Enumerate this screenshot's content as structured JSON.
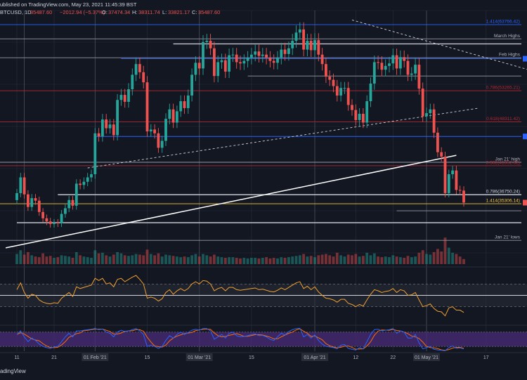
{
  "header": {
    "published": "ublished on TradingView.com, May 23, 2021 11:45:39 BST",
    "symbol": "BTCUSD, 1D",
    "last": "35487.60",
    "change": "−2012.94 (−5.37%)",
    "o_label": "O:",
    "o_value": "37474.34",
    "h_label": "H:",
    "h_value": "38311.74",
    "l_label": "L:",
    "l_value": "33821.17",
    "c_label": "C:",
    "c_value": "35487.60"
  },
  "footer": {
    "brand": "adingView"
  },
  "colors": {
    "up": "#26a69a",
    "down": "#ef5350",
    "bg": "#131722",
    "grid": "#2a2e39",
    "rsi": "#f0a030",
    "stoch_k": "#2962ff",
    "stoch_d": "#ff6d00",
    "stoch_band": "#4a2b7a",
    "fib_blue": "#2962ff",
    "fib_red": "#b22833",
    "fib_yellow": "#f5c542"
  },
  "chart_data": {
    "type": "candlestick",
    "symbol": "BTCUSD",
    "timeframe": "1D",
    "x_ticks": [
      {
        "label": "11",
        "day": 0
      },
      {
        "label": "21",
        "day": 10
      },
      {
        "label": "01 Feb '21",
        "day": 21
      },
      {
        "label": "15",
        "day": 35
      },
      {
        "label": "01 Mar '21",
        "day": 49
      },
      {
        "label": "15",
        "day": 63
      },
      {
        "label": "01 Apr '21",
        "day": 80
      },
      {
        "label": "12",
        "day": 91
      },
      {
        "label": "22",
        "day": 101
      },
      {
        "label": "01 May '21",
        "day": 110
      },
      {
        "label": "17",
        "day": 126
      },
      {
        "label": "Jun",
        "day": 141
      }
    ],
    "closes": [
      37000,
      39500,
      36800,
      34800,
      36200,
      35800,
      34000,
      33000,
      32500,
      32100,
      32300,
      32200,
      33700,
      34600,
      35900,
      35000,
      38500,
      38300,
      38800,
      39500,
      40000,
      46500,
      46000,
      48700,
      47300,
      47900,
      46200,
      51800,
      52600,
      51500,
      53500,
      55800,
      57500,
      56200,
      54600,
      46800,
      47100,
      46500,
      44200,
      45300,
      48800,
      50300,
      48200,
      50000,
      51600,
      50500,
      52500,
      55800,
      57700,
      56800,
      61000,
      61200,
      60000,
      55600,
      57800,
      58100,
      56300,
      58900,
      59000,
      57800,
      57600,
      58000,
      58500,
      59000,
      59500,
      58800,
      59000,
      58500,
      58000,
      57700,
      58500,
      59800,
      59100,
      60000,
      61200,
      62500,
      63000,
      59800,
      61200,
      59700,
      61300,
      59000,
      57500,
      55500,
      55000,
      54000,
      52500,
      53700,
      53700,
      51000,
      50200,
      48600,
      49600,
      48200,
      51600,
      54400,
      57800,
      57700,
      56600,
      57200,
      57600,
      58900,
      56800,
      58600,
      58000,
      55800,
      56000,
      57400,
      53600,
      49200,
      49700,
      50300,
      46600,
      43500,
      42800,
      37000,
      40000,
      40600,
      37500,
      37400,
      35500
    ],
    "volumes": [
      80,
      110,
      75,
      95,
      70,
      60,
      55,
      85,
      60,
      65,
      50,
      55,
      70,
      65,
      60,
      50,
      95,
      70,
      60,
      55,
      50,
      110,
      85,
      90,
      70,
      60,
      75,
      95,
      85,
      70,
      65,
      70,
      80,
      75,
      70,
      115,
      80,
      70,
      85,
      60,
      75,
      70,
      65,
      60,
      55,
      60,
      55,
      70,
      80,
      60,
      80,
      70,
      60,
      75,
      60,
      55,
      50,
      55,
      55,
      50,
      45,
      50,
      45,
      50,
      50,
      45,
      50,
      55,
      45,
      50,
      45,
      55,
      50,
      55,
      60,
      65,
      70,
      80,
      60,
      65,
      55,
      70,
      75,
      80,
      70,
      60,
      90,
      70,
      60,
      75,
      70,
      80,
      60,
      65,
      90,
      70,
      85,
      60,
      55,
      60,
      55,
      70,
      60,
      55,
      50,
      65,
      55,
      60,
      90,
      110,
      80,
      75,
      95,
      120,
      100,
      210,
      130,
      90,
      80,
      60,
      40
    ],
    "rsi": [
      60,
      72,
      55,
      45,
      52,
      50,
      42,
      38,
      36,
      35,
      37,
      36,
      45,
      50,
      55,
      48,
      65,
      62,
      64,
      66,
      68,
      80,
      76,
      80,
      70,
      72,
      65,
      78,
      80,
      74,
      78,
      82,
      85,
      78,
      70,
      45,
      47,
      45,
      40,
      44,
      55,
      60,
      52,
      58,
      62,
      58,
      62,
      70,
      74,
      70,
      76,
      75,
      70,
      58,
      62,
      64,
      58,
      64,
      64,
      60,
      59,
      60,
      61,
      62,
      63,
      60,
      61,
      59,
      57,
      56,
      59,
      63,
      60,
      64,
      68,
      72,
      74,
      62,
      66,
      60,
      65,
      56,
      50,
      45,
      44,
      42,
      38,
      43,
      43,
      36,
      34,
      30,
      34,
      31,
      42,
      52,
      60,
      58,
      55,
      57,
      58,
      62,
      55,
      60,
      58,
      50,
      51,
      55,
      42,
      30,
      32,
      35,
      27,
      22,
      21,
      14,
      28,
      30,
      24,
      24,
      20
    ],
    "rsi_levels": [
      70,
      30
    ],
    "stoch_k": [
      70,
      85,
      60,
      40,
      55,
      45,
      30,
      20,
      15,
      12,
      18,
      20,
      40,
      60,
      75,
      60,
      85,
      85,
      88,
      90,
      92,
      95,
      90,
      93,
      80,
      75,
      60,
      80,
      88,
      82,
      85,
      90,
      95,
      85,
      70,
      20,
      25,
      20,
      12,
      20,
      45,
      65,
      55,
      70,
      80,
      70,
      78,
      88,
      92,
      88,
      95,
      95,
      85,
      50,
      60,
      70,
      55,
      75,
      80,
      65,
      60,
      62,
      65,
      70,
      72,
      65,
      66,
      60,
      50,
      45,
      60,
      75,
      68,
      82,
      90,
      95,
      96,
      60,
      70,
      55,
      68,
      45,
      30,
      20,
      18,
      15,
      10,
      25,
      28,
      12,
      8,
      5,
      15,
      10,
      40,
      70,
      90,
      92,
      85,
      88,
      90,
      95,
      75,
      85,
      80,
      55,
      55,
      70,
      35,
      10,
      15,
      20,
      8,
      5,
      4,
      2,
      15,
      22,
      12,
      14,
      10
    ],
    "stoch_levels": [
      80,
      20
    ],
    "horizontal_levels": [
      {
        "label": "1.414(63766.42)",
        "price": 63766,
        "color": "#2962ff",
        "style": "fib"
      },
      {
        "label": "March Highs",
        "price": 61500,
        "color": "#9598a1",
        "style": "gray"
      },
      {
        "label": "",
        "price": 60700,
        "color": "#d1d4dc",
        "style": "white",
        "start_day": 42
      },
      {
        "label": "Feb Highs",
        "price": 58500,
        "color": "#9598a1",
        "style": "gray"
      },
      {
        "label": "",
        "price": 58350,
        "color": "#2962ff",
        "style": "blue",
        "start_day": 28
      },
      {
        "label": "",
        "price": 55600,
        "color": "#9598a1",
        "style": "gray",
        "start_day": 62
      },
      {
        "label": "0.786(53265.21)",
        "price": 53265,
        "color": "#b22833",
        "style": "fib"
      },
      {
        "label": "0.618(48311.42)",
        "price": 48311,
        "color": "#b22833",
        "style": "fib"
      },
      {
        "label": "",
        "price": 46000,
        "color": "#2962ff",
        "style": "blue",
        "start_day": 21
      },
      {
        "label": "Jan 21' high",
        "price": 41900,
        "color": "#9598a1",
        "style": "gray"
      },
      {
        "label": "0.382(41352.32)",
        "price": 41352,
        "color": "#b22833",
        "style": "fib"
      },
      {
        "label": "0.786(36750.24)",
        "price": 36750,
        "color": "#d1d4dc",
        "style": "white",
        "start_day": 11
      },
      {
        "label": "1.414(35306.14)",
        "price": 35306,
        "color": "#f5c542",
        "style": "yellow"
      },
      {
        "label": "",
        "price": 34200,
        "color": "#9598a1",
        "style": "gray",
        "start_day": 102
      },
      {
        "label": "",
        "price": 32300,
        "color": "#d1d4dc",
        "style": "white",
        "start_day": 0
      },
      {
        "label": "Jan 21' lows",
        "price": 29500,
        "color": "#9598a1",
        "style": "gray"
      }
    ],
    "trendlines": [
      {
        "from_day": -3,
        "from_price": 28300,
        "to_day": 118,
        "to_price": 43000,
        "color": "#ffffff",
        "dash": false
      },
      {
        "from_day": 19,
        "from_price": 41000,
        "to_day": 124,
        "to_price": 50500,
        "color": "#d1d4dc",
        "dash": true
      },
      {
        "from_day": 90,
        "from_price": 64500,
        "to_day": 150,
        "to_price": 54500,
        "color": "#d1d4dc",
        "dash": true
      }
    ],
    "price_tags": [
      {
        "price": 35487,
        "color": "#ef5350"
      },
      {
        "price": 58350,
        "color": "#2962ff"
      },
      {
        "price": 46000,
        "color": "#2962ff"
      }
    ],
    "vertical_markers": [
      2,
      21,
      49,
      80,
      110
    ]
  }
}
